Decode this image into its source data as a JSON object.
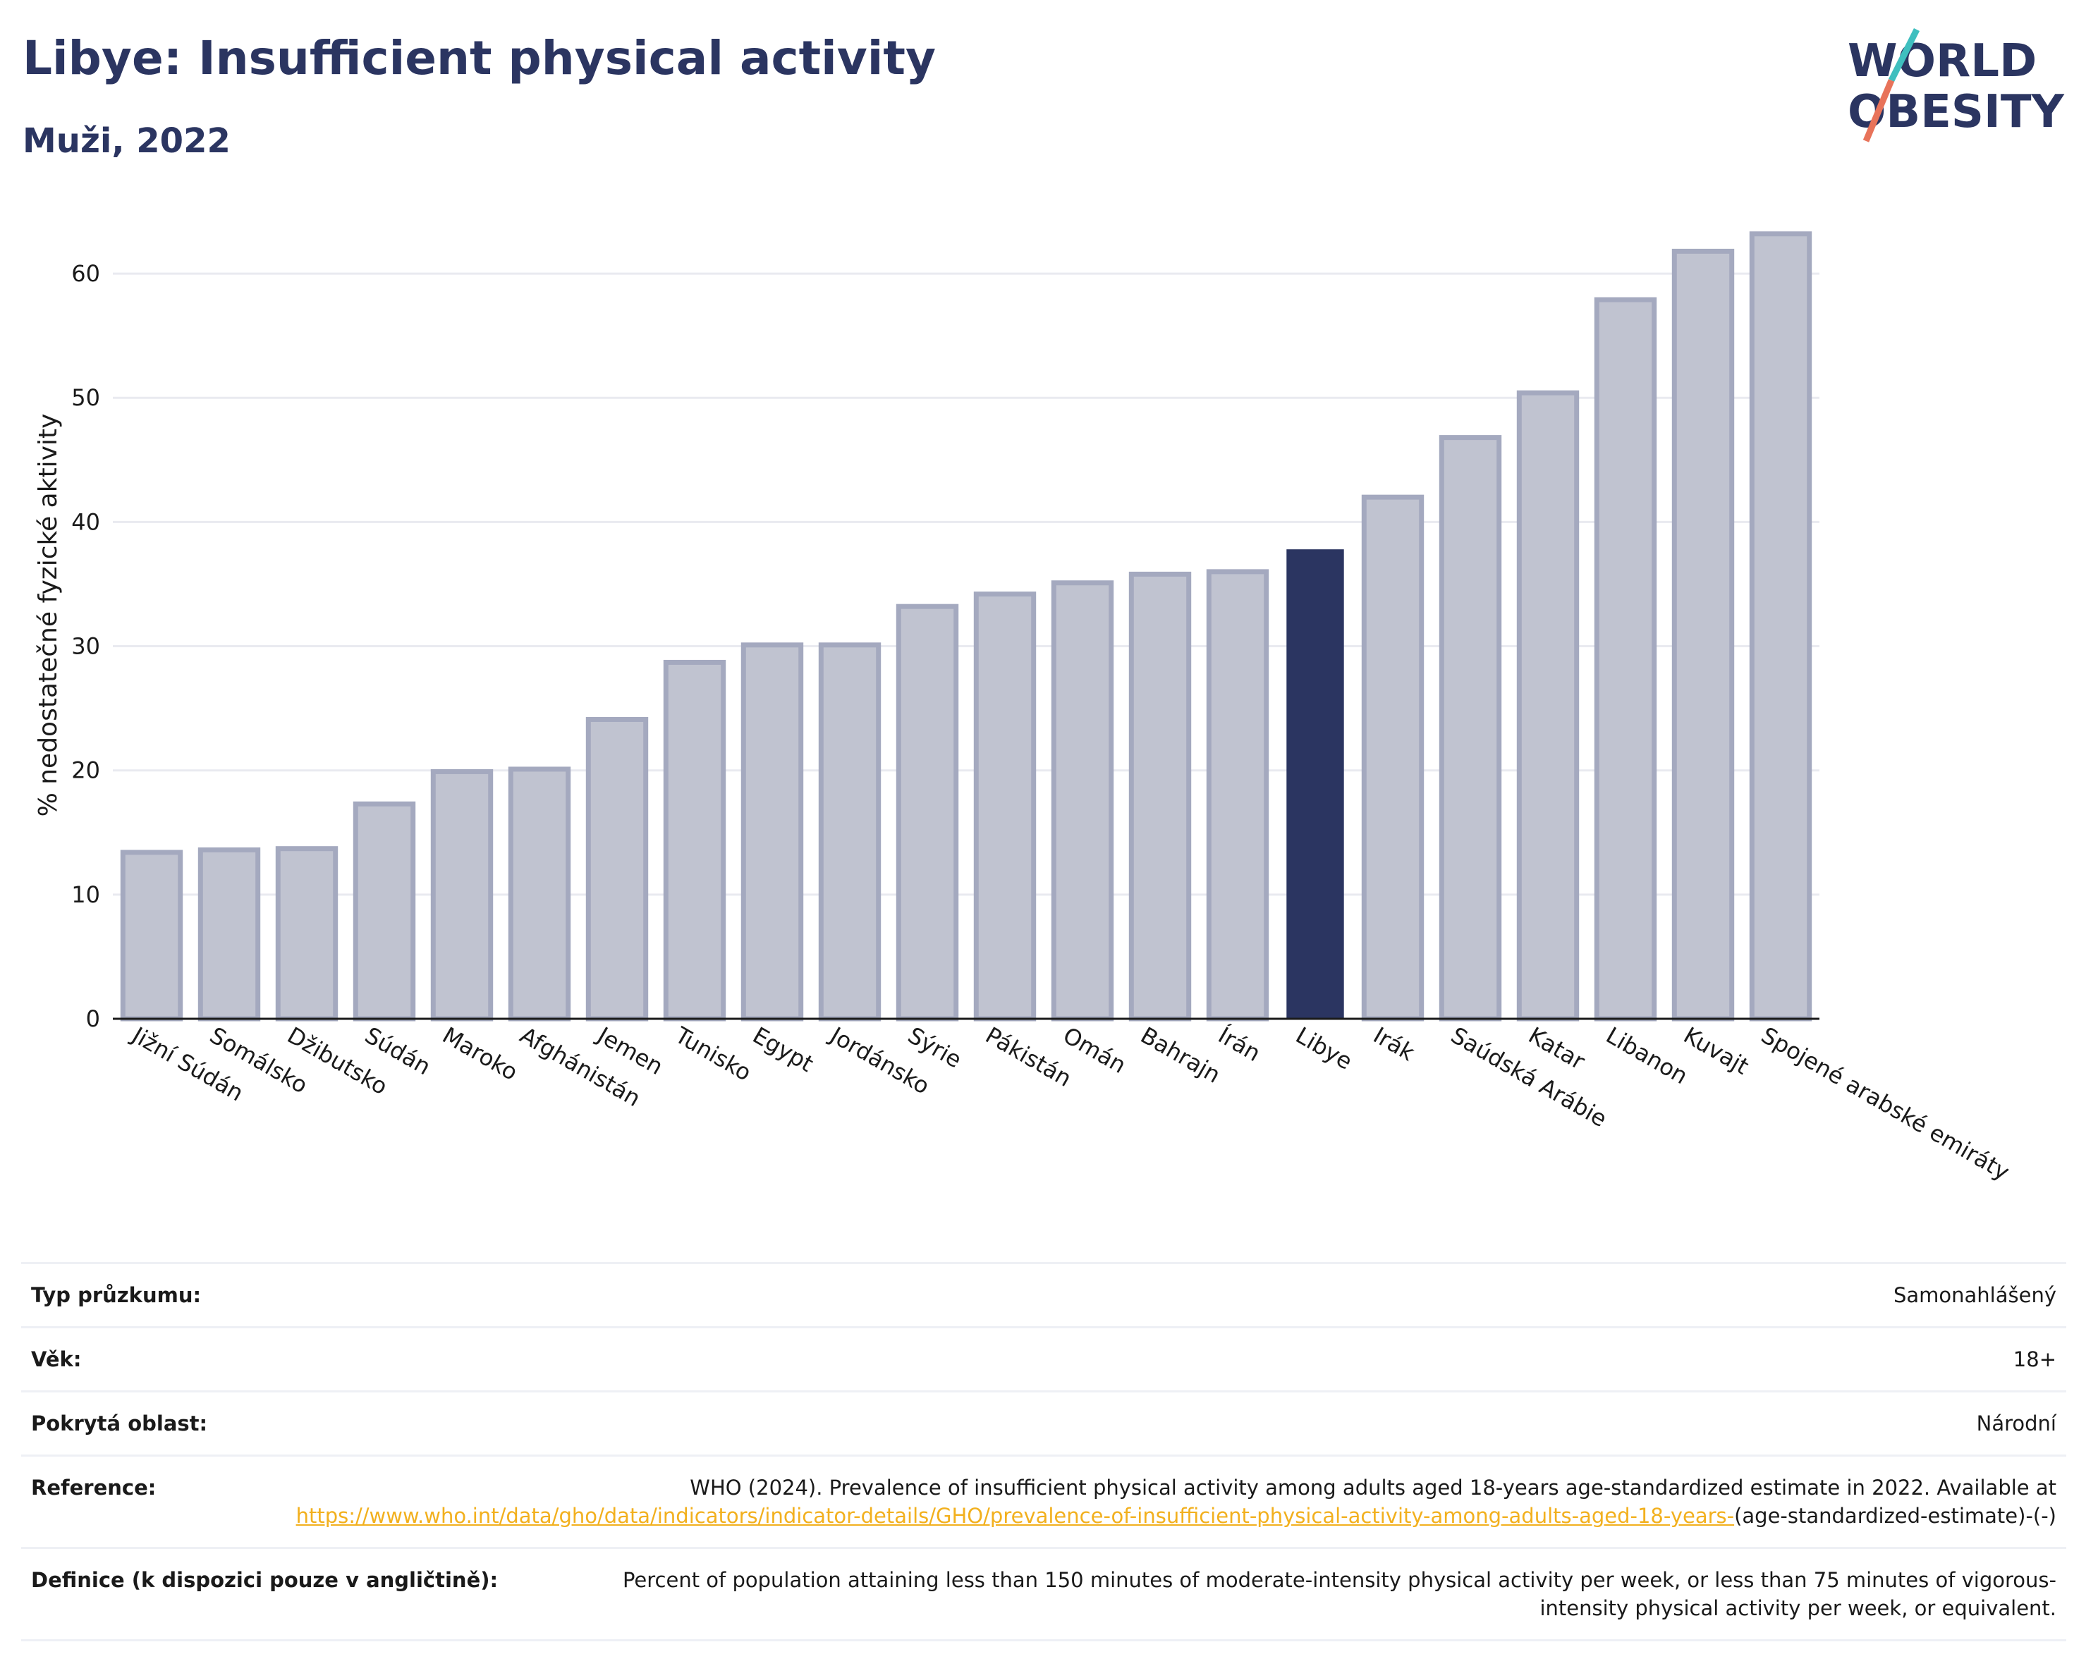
{
  "header": {
    "title": "Libye: Insufficient physical activity",
    "subtitle": "Muži, 2022"
  },
  "logo": {
    "line1": "WORLD",
    "line2": "OBESITY",
    "color_text": "#2b3561",
    "color_slash_top": "#3fbfbf",
    "color_slash_bottom": "#e8735a"
  },
  "colors": {
    "bar_default": "#c0c3d0",
    "bar_border": "#a4a9bf",
    "bar_highlight": "#2b3561",
    "grid": "#e9eaf0"
  },
  "chart_data": {
    "type": "bar",
    "ylabel": "% nedostatečné fyzické aktivity",
    "xlabel": "",
    "ylim": [
      0,
      65
    ],
    "yticks": [
      0,
      10,
      20,
      30,
      40,
      50,
      60
    ],
    "highlight": "Libye",
    "categories": [
      "Jižní Súdán",
      "Somálsko",
      "Džibutsko",
      "Súdán",
      "Maroko",
      "Afghánistán",
      "Jemen",
      "Tunisko",
      "Egypt",
      "Jordánsko",
      "Sýrie",
      "Pákistán",
      "Omán",
      "Bahrajn",
      "Írán",
      "Libye",
      "Irák",
      "Saúdská Arábie",
      "Katar",
      "Libanon",
      "Kuvajt",
      "Spojené arabské emiráty"
    ],
    "values": [
      13.4,
      13.6,
      13.7,
      17.3,
      19.9,
      20.1,
      24.1,
      28.7,
      30.1,
      30.1,
      33.2,
      34.2,
      35.1,
      35.8,
      36.0,
      37.8,
      42.0,
      46.8,
      50.4,
      57.9,
      61.8,
      63.2
    ]
  },
  "info": {
    "survey_type": {
      "label": "Typ průzkumu:",
      "value": "Samonahlášený"
    },
    "age": {
      "label": "Věk:",
      "value": "18+"
    },
    "coverage": {
      "label": "Pokrytá oblast:",
      "value": "Národní"
    },
    "reference": {
      "label": "Reference:",
      "text": "WHO (2024). Prevalence of insufficient physical activity among adults aged 18-years age-standardized estimate in 2022. Available at",
      "link": "https://www.who.int/data/gho/data/indicators/indicator-details/GHO/prevalence-of-insufficient-physical-activity-among-adults-aged-18-years-",
      "suffix": "(age-standardized-estimate)-(-)"
    },
    "definition": {
      "label": "Definice (k dispozici pouze v angličtině):",
      "value": "Percent of population attaining less than 150 minutes of moderate-intensity physical activity per week, or less than 75 minutes of vigorous-intensity physical activity per week, or equivalent."
    }
  }
}
